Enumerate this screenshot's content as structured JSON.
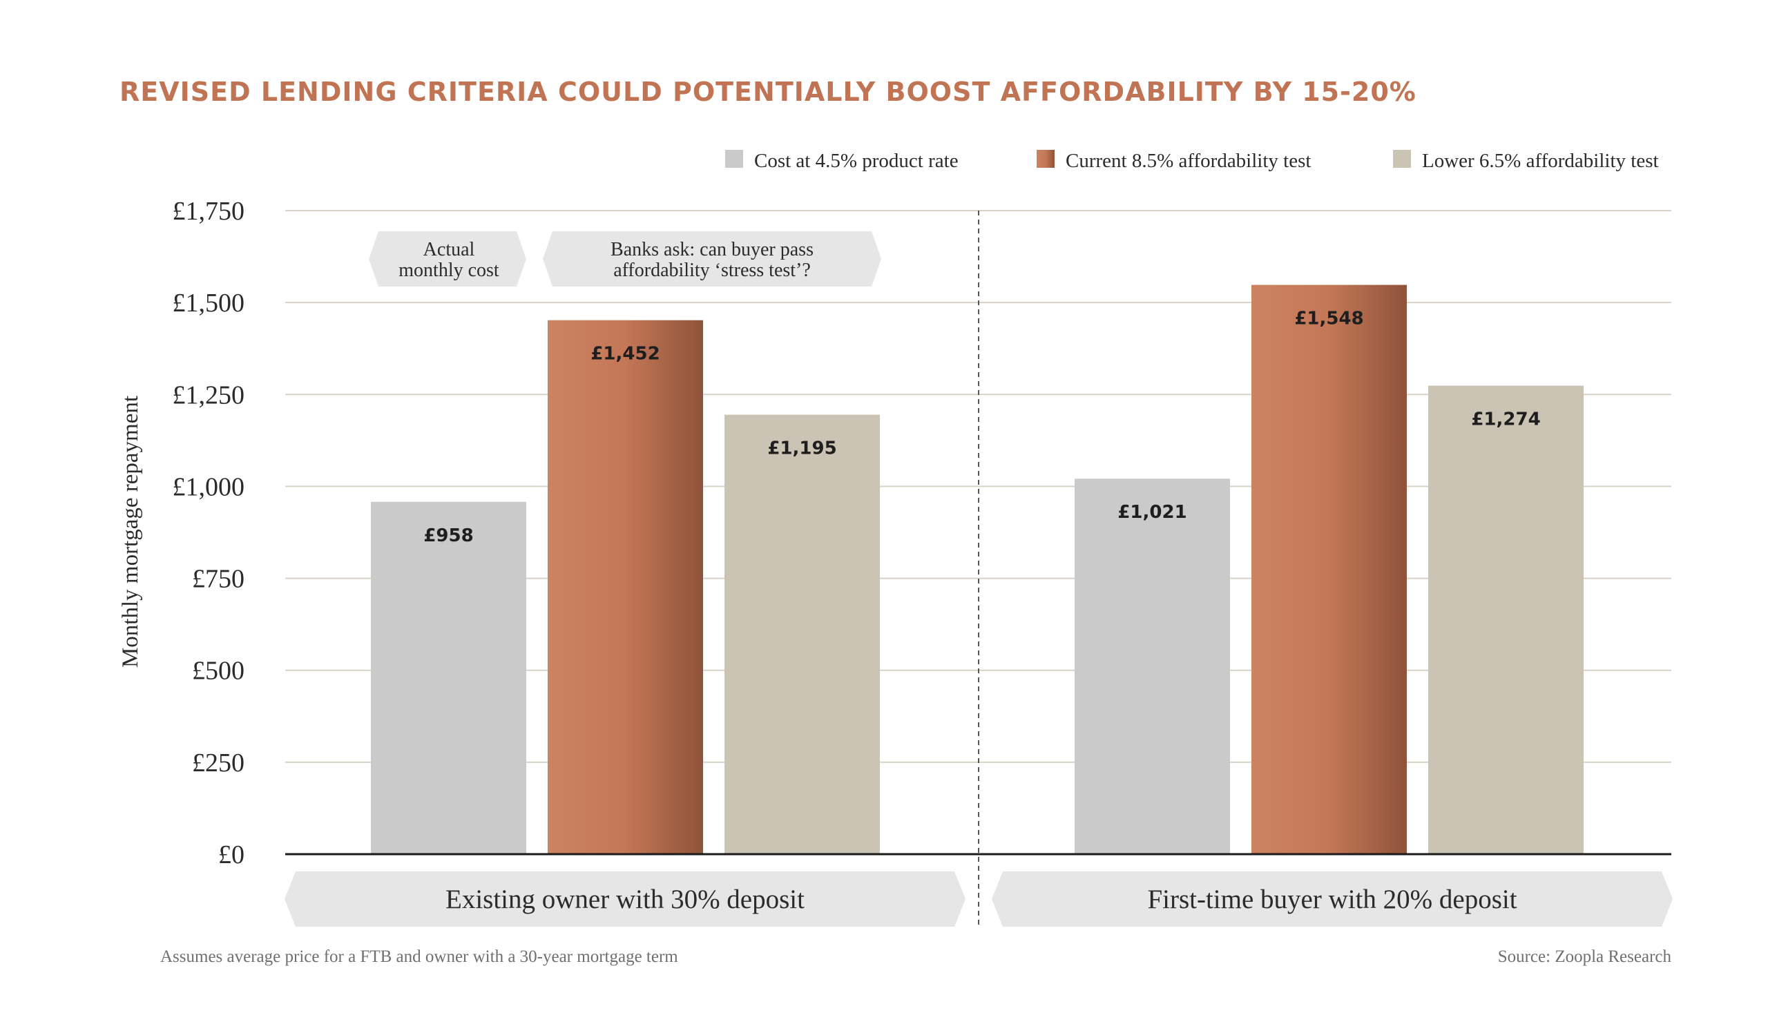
{
  "chart_data": {
    "type": "bar",
    "title": "REVISED LENDING CRITERIA COULD POTENTIALLY BOOST AFFORDABILITY BY 15-20%",
    "ylabel": "Monthly mortgage repayment",
    "xlabel": "",
    "ylim": [
      0,
      1750
    ],
    "yticks": [
      0,
      250,
      500,
      750,
      1000,
      1250,
      1500,
      1750
    ],
    "ytick_labels": [
      "£0",
      "£250",
      "£500",
      "£750",
      "£1,000",
      "£1,250",
      "£1,500",
      "£1,750"
    ],
    "categories": [
      "Existing owner with 30% deposit",
      "First-time buyer with 20% deposit"
    ],
    "series": [
      {
        "name": "Cost at 4.5% product rate",
        "values": [
          958,
          1021
        ],
        "labels": [
          "£958",
          "£1,021"
        ],
        "color": "#cacaca"
      },
      {
        "name": "Current 8.5% affordability test",
        "values": [
          1452,
          1548
        ],
        "labels": [
          "£1,452",
          "£1,548"
        ],
        "color": "#c47a5a"
      },
      {
        "name": "Lower 6.5% affordability test",
        "values": [
          1195,
          1274
        ],
        "labels": [
          "£1,195",
          "£1,274"
        ],
        "color": "#cbc3b3"
      }
    ],
    "legend_position": "top-right",
    "grid": true,
    "annotations": [
      {
        "lines": [
          "Actual",
          "monthly cost"
        ]
      },
      {
        "lines": [
          "Banks ask: can buyer pass",
          "affordability ‘stress test’?"
        ]
      }
    ]
  },
  "footnote": "Assumes average price for a FTB and owner with a 30-year mortgage term",
  "source": "Source: Zoopla Research",
  "colors": {
    "title": "#c07454",
    "grid": "#d9d3c6",
    "axis": "#1a1a1a",
    "callout_fill": "#e6e6e6"
  }
}
